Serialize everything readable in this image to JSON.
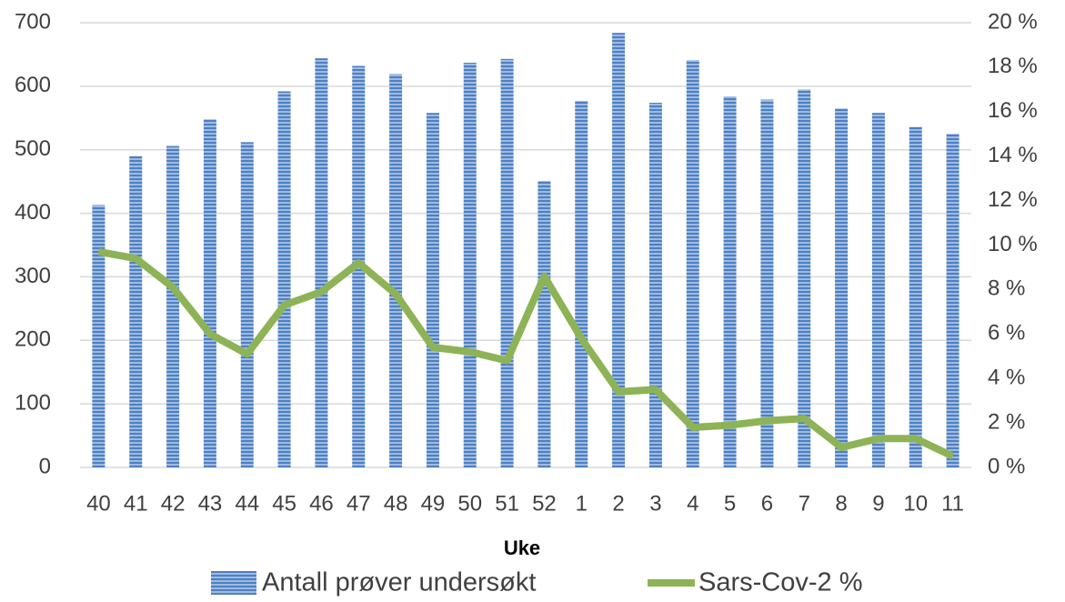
{
  "chart_data": {
    "type": "bar_line",
    "x_label": "Uke",
    "categories": [
      "40",
      "41",
      "42",
      "43",
      "44",
      "45",
      "46",
      "47",
      "48",
      "49",
      "50",
      "51",
      "52",
      "1",
      "2",
      "3",
      "4",
      "5",
      "6",
      "7",
      "8",
      "9",
      "10",
      "11"
    ],
    "series": [
      {
        "name": "Antall prøver undersøkt",
        "type": "bar",
        "color": "#4f7fc0",
        "axis": "y",
        "values": [
          413,
          490,
          506,
          548,
          512,
          592,
          644,
          632,
          619,
          558,
          637,
          643,
          451,
          577,
          684,
          574,
          641,
          584,
          579,
          595,
          565,
          558,
          536,
          525
        ]
      },
      {
        "name": "Sars-Cov-2 %",
        "type": "line",
        "color": "#8db356",
        "axis": "y2",
        "values": [
          9.7,
          9.4,
          8.1,
          6.0,
          5.1,
          7.3,
          7.9,
          9.2,
          7.8,
          5.4,
          5.2,
          4.8,
          8.6,
          5.8,
          3.4,
          3.5,
          1.8,
          1.9,
          2.1,
          2.2,
          0.9,
          1.3,
          1.3,
          0.5
        ]
      }
    ],
    "ylim": [
      0,
      700
    ],
    "yticks": [
      0,
      100,
      200,
      300,
      400,
      500,
      600,
      700
    ],
    "y2lim": [
      0,
      20
    ],
    "y2ticks": [
      {
        "value": 0,
        "label": "0 %"
      },
      {
        "value": 2,
        "label": "2 %"
      },
      {
        "value": 4,
        "label": "4 %"
      },
      {
        "value": 6,
        "label": "6 %"
      },
      {
        "value": 8,
        "label": "8 %"
      },
      {
        "value": 10,
        "label": "10 %"
      },
      {
        "value": 12,
        "label": "12 %"
      },
      {
        "value": 14,
        "label": "14 %"
      },
      {
        "value": 16,
        "label": "16 %"
      },
      {
        "value": 18,
        "label": "18 %"
      },
      {
        "value": 20,
        "label": "20 %"
      }
    ],
    "grid": true,
    "legend": "bottom"
  }
}
